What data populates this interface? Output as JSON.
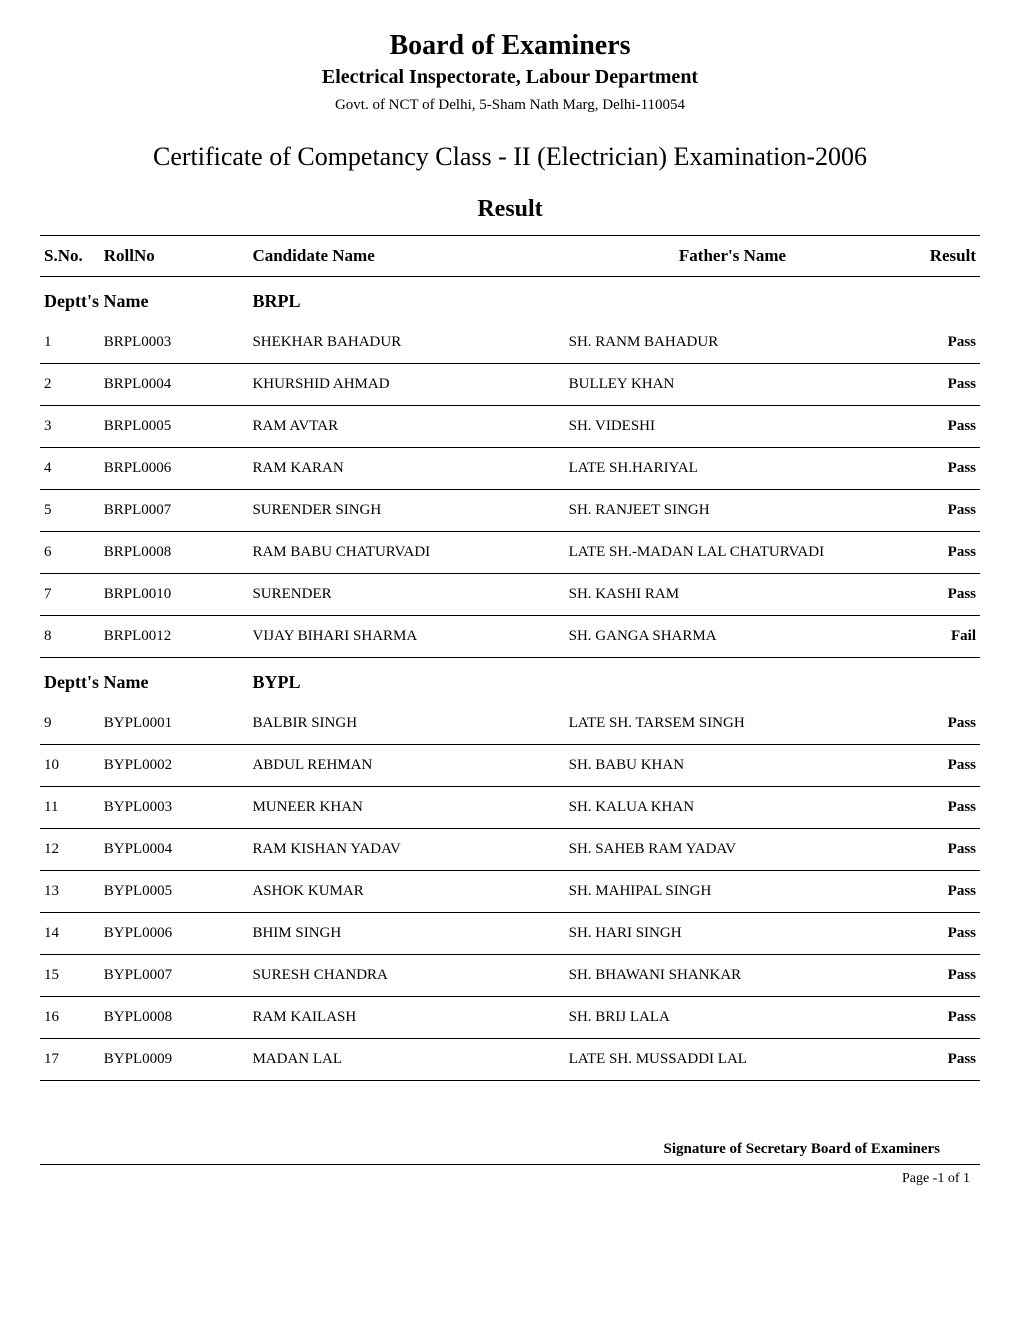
{
  "header": {
    "main_title": "Board of Examiners",
    "sub_title": "Electrical Inspectorate, Labour Department",
    "govt_line": "Govt. of NCT of Delhi, 5-Sham Nath Marg, Delhi-110054",
    "cert_title": "Certificate of Competancy Class - II (Electrician) Examination-2006",
    "result_heading": "Result"
  },
  "columns": {
    "sno": "S.No.",
    "roll": "RollNo",
    "candidate": "Candidate Name",
    "father": "Father's Name",
    "result": "Result"
  },
  "dept_label": "Deptt's Name",
  "departments": [
    {
      "name": "BRPL",
      "rows": [
        {
          "sno": "1",
          "roll": "BRPL0003",
          "candidate": "SHEKHAR  BAHADUR",
          "father": "SH. RANM BAHADUR",
          "result": "Pass"
        },
        {
          "sno": "2",
          "roll": "BRPL0004",
          "candidate": "KHURSHID  AHMAD",
          "father": "BULLEY KHAN",
          "result": "Pass"
        },
        {
          "sno": "3",
          "roll": "BRPL0005",
          "candidate": "RAM AVTAR",
          "father": "SH. VIDESHI",
          "result": "Pass"
        },
        {
          "sno": "4",
          "roll": "BRPL0006",
          "candidate": "RAM KARAN",
          "father": "LATE SH.HARIYAL",
          "result": "Pass"
        },
        {
          "sno": "5",
          "roll": "BRPL0007",
          "candidate": "SURENDER SINGH",
          "father": "SH. RANJEET SINGH",
          "result": "Pass"
        },
        {
          "sno": "6",
          "roll": "BRPL0008",
          "candidate": "RAM BABU  CHATURVADI",
          "father": "LATE SH.-MADAN  LAL CHATURVADI",
          "result": "Pass"
        },
        {
          "sno": "7",
          "roll": "BRPL0010",
          "candidate": "SURENDER",
          "father": "SH. KASHI RAM",
          "result": "Pass"
        },
        {
          "sno": "8",
          "roll": "BRPL0012",
          "candidate": "VIJAY BIHARI SHARMA",
          "father": "SH. GANGA  SHARMA",
          "result": "Fail"
        }
      ]
    },
    {
      "name": "BYPL",
      "rows": [
        {
          "sno": "9",
          "roll": "BYPL0001",
          "candidate": "BALBIR SINGH",
          "father": "LATE  SH. TARSEM SINGH",
          "result": "Pass"
        },
        {
          "sno": "10",
          "roll": "BYPL0002",
          "candidate": "ABDUL  REHMAN",
          "father": "SH. BABU KHAN",
          "result": "Pass"
        },
        {
          "sno": "11",
          "roll": "BYPL0003",
          "candidate": "MUNEER  KHAN",
          "father": "SH. KALUA KHAN",
          "result": "Pass"
        },
        {
          "sno": "12",
          "roll": "BYPL0004",
          "candidate": "RAM KISHAN  YADAV",
          "father": "SH. SAHEB  RAM  YADAV",
          "result": "Pass"
        },
        {
          "sno": "13",
          "roll": "BYPL0005",
          "candidate": "ASHOK  KUMAR",
          "father": "SH. MAHIPAL  SINGH",
          "result": "Pass"
        },
        {
          "sno": "14",
          "roll": "BYPL0006",
          "candidate": "BHIM SINGH",
          "father": "SH. HARI SINGH",
          "result": "Pass"
        },
        {
          "sno": "15",
          "roll": "BYPL0007",
          "candidate": "SURESH  CHANDRA",
          "father": "SH. BHAWANI  SHANKAR",
          "result": "Pass"
        },
        {
          "sno": "16",
          "roll": "BYPL0008",
          "candidate": "RAM KAILASH",
          "father": "SH. BRIJ LALA",
          "result": "Pass"
        },
        {
          "sno": "17",
          "roll": "BYPL0009",
          "candidate": "MADAN  LAL",
          "father": "LATE   SH. MUSSADDI  LAL",
          "result": "Pass"
        }
      ]
    }
  ],
  "footer": {
    "signature": "Signature of Secretary Board of Examiners",
    "page": "Page -1 of 1"
  },
  "style": {
    "background": "#ffffff",
    "text_color": "#000000",
    "border_color": "#000000",
    "title_fontsize": 28,
    "subtitle_fontsize": 20,
    "cert_fontsize": 26,
    "result_heading_fontsize": 24,
    "header_fontsize": 17,
    "row_fontsize": 15
  }
}
